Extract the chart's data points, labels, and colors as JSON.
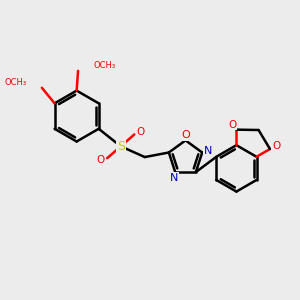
{
  "background_color": "#ececec",
  "bond_color": "#000000",
  "oxygen_color": "#ff0000",
  "nitrogen_color": "#0000cc",
  "sulfur_color": "#cccc00",
  "line_width": 1.8,
  "figsize": [
    3.0,
    3.0
  ],
  "dpi": 100,
  "xlim": [
    0,
    10
  ],
  "ylim": [
    0,
    10
  ]
}
